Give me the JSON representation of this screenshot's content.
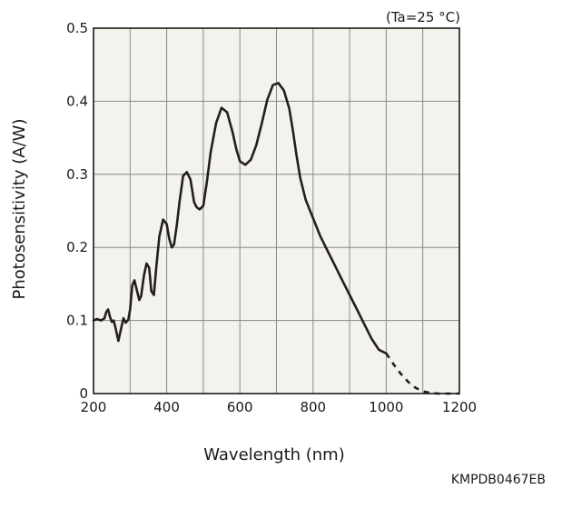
{
  "chart_data": {
    "type": "line",
    "annotation": "(Ta=25 °C)",
    "xlabel": "Wavelength (nm)",
    "ylabel": "Photosensitivity (A/W)",
    "figure_code": "KMPDB0467EB",
    "xlim": [
      200,
      1200
    ],
    "ylim": [
      0,
      0.5
    ],
    "x_ticks": [
      200,
      400,
      600,
      800,
      1000,
      1200
    ],
    "x_tick_labels": [
      "200",
      "400",
      "600",
      "800",
      "1000",
      "1200"
    ],
    "y_ticks": [
      0,
      0.1,
      0.2,
      0.3,
      0.4,
      0.5
    ],
    "y_tick_labels": [
      "0",
      "0.1",
      "0.2",
      "0.3",
      "0.4",
      "0.5"
    ],
    "grid": true,
    "plot_background": "#f3f2ec",
    "line_color": "#231f20",
    "series": [
      {
        "style": "solid",
        "x": [
          200,
          210,
          220,
          230,
          235,
          240,
          245,
          250,
          255,
          260,
          268,
          275,
          282,
          288,
          295,
          300,
          306,
          312,
          318,
          325,
          330,
          338,
          345,
          352,
          358,
          365,
          372,
          380,
          390,
          400,
          407,
          414,
          420,
          428,
          435,
          445,
          455,
          465,
          475,
          482,
          490,
          500,
          510,
          520,
          535,
          550,
          565,
          580,
          590,
          600,
          615,
          630,
          645,
          660,
          675,
          690,
          705,
          720,
          735,
          745,
          755,
          765,
          780,
          800,
          820,
          840,
          860,
          880,
          900,
          920,
          940,
          960,
          980,
          1000
        ],
        "y": [
          0.1,
          0.102,
          0.1,
          0.103,
          0.112,
          0.115,
          0.105,
          0.098,
          0.1,
          0.09,
          0.072,
          0.088,
          0.103,
          0.097,
          0.101,
          0.115,
          0.148,
          0.155,
          0.142,
          0.128,
          0.133,
          0.162,
          0.178,
          0.172,
          0.14,
          0.135,
          0.175,
          0.215,
          0.238,
          0.232,
          0.212,
          0.2,
          0.204,
          0.232,
          0.262,
          0.298,
          0.303,
          0.293,
          0.262,
          0.255,
          0.252,
          0.257,
          0.29,
          0.33,
          0.37,
          0.391,
          0.385,
          0.358,
          0.335,
          0.318,
          0.313,
          0.32,
          0.34,
          0.37,
          0.402,
          0.422,
          0.425,
          0.415,
          0.39,
          0.36,
          0.325,
          0.295,
          0.265,
          0.24,
          0.215,
          0.195,
          0.175,
          0.155,
          0.135,
          0.115,
          0.095,
          0.075,
          0.06,
          0.055
        ]
      },
      {
        "style": "dashed",
        "x": [
          1000,
          1020,
          1040,
          1060,
          1080,
          1100,
          1120,
          1140,
          1160,
          1180,
          1200
        ],
        "y": [
          0.055,
          0.04,
          0.027,
          0.016,
          0.008,
          0.003,
          0.001,
          0.0,
          0.0,
          0.0,
          0.0
        ]
      }
    ]
  }
}
